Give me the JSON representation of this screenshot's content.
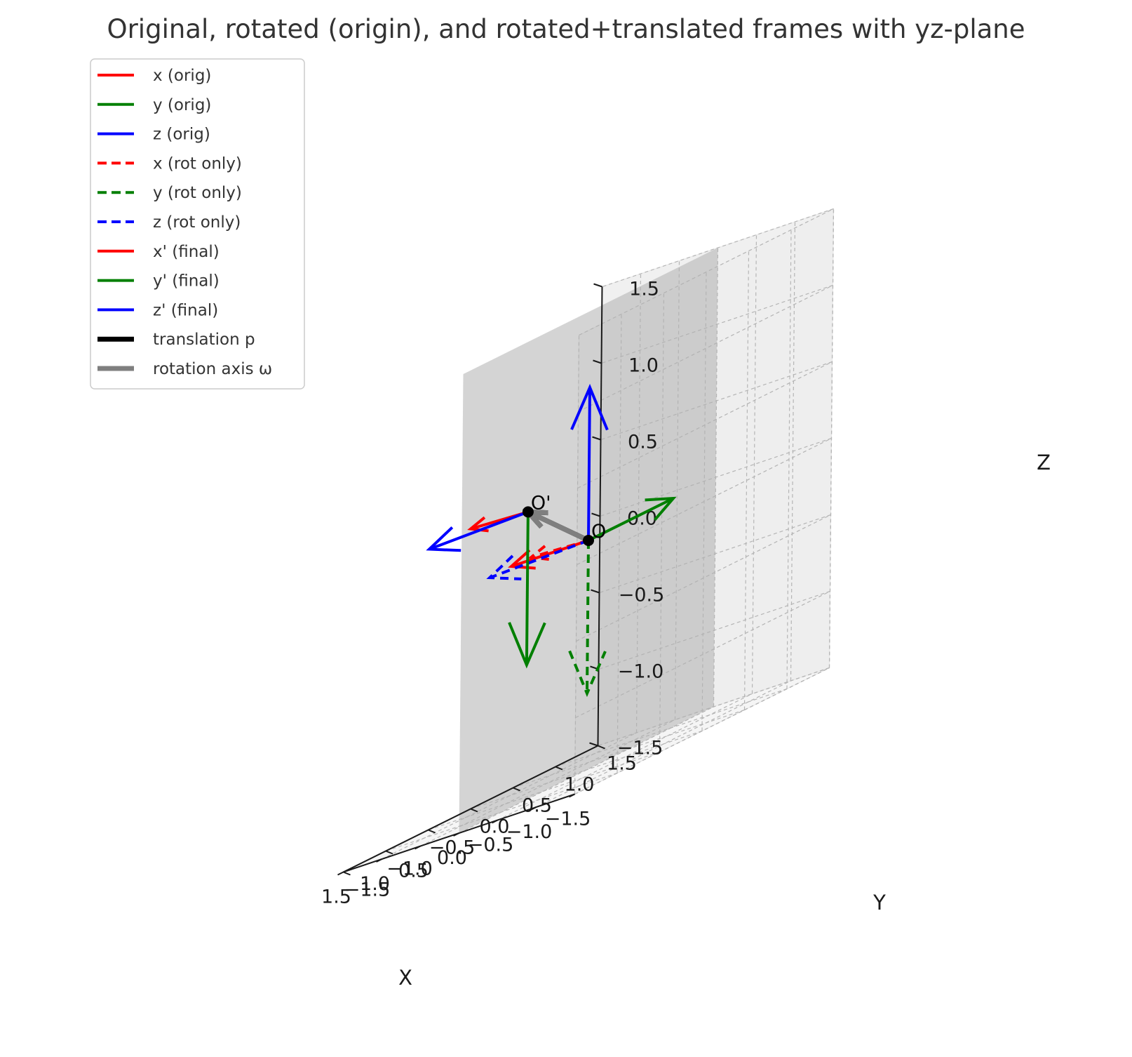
{
  "chart_data": {
    "type": "3d-quiver",
    "title": "Original, rotated (origin), and rotated+translated frames with yz-plane",
    "xlabel": "X",
    "ylabel": "Y",
    "zlabel": "Z",
    "xlim": [
      -1.5,
      1.5
    ],
    "ylim": [
      -1.5,
      1.5
    ],
    "zlim": [
      -1.5,
      1.5
    ],
    "x_ticks": [
      "−1.5",
      "−1.0",
      "−0.5",
      "0.0",
      "0.5",
      "1.0",
      "1.5"
    ],
    "y_ticks": [
      "−1.5",
      "−1.0",
      "−0.5",
      "0.0",
      "0.5",
      "1.0",
      "1.5"
    ],
    "z_ticks": [
      "−1.5",
      "−1.0",
      "−0.5",
      "0.0",
      "0.5",
      "1.0",
      "1.5"
    ],
    "tick_values": [
      -1.5,
      -1.0,
      -0.5,
      0.0,
      0.5,
      1.0,
      1.5
    ],
    "grid": true,
    "legend_position": "upper-left",
    "plane": {
      "x": 0,
      "y_range": [
        -1.5,
        1.5
      ],
      "z_range": [
        -1.5,
        1.5
      ],
      "color": "#b0b0b0"
    },
    "points": [
      {
        "label": "O",
        "pos": [
          0,
          0,
          0
        ]
      },
      {
        "label": "O'",
        "pos": [
          -0.2,
          -0.9,
          0.4
        ]
      }
    ],
    "series": [
      {
        "name": "x (orig)",
        "color": "#ff0000",
        "style": "solid",
        "start": [
          0,
          0,
          0
        ],
        "vec": [
          1,
          0,
          0
        ]
      },
      {
        "name": "y (orig)",
        "color": "#007f00",
        "style": "solid",
        "start": [
          0,
          0,
          0
        ],
        "vec": [
          0,
          1,
          0
        ]
      },
      {
        "name": "z (orig)",
        "color": "#0000ff",
        "style": "solid",
        "start": [
          0,
          0,
          0
        ],
        "vec": [
          0,
          0,
          1
        ]
      },
      {
        "name": "x (rot only)",
        "color": "#ff0000",
        "style": "dashed",
        "start": [
          0,
          0,
          0
        ],
        "vec": [
          -0.3,
          -0.95,
          0.1
        ]
      },
      {
        "name": "y (rot only)",
        "color": "#007f00",
        "style": "dashed",
        "start": [
          0,
          0,
          0
        ],
        "vec": [
          0,
          0,
          -1
        ]
      },
      {
        "name": "z (rot only)",
        "color": "#0000ff",
        "style": "dashed",
        "start": [
          0,
          0,
          0
        ],
        "vec": [
          0.95,
          -0.3,
          0
        ]
      },
      {
        "name": "x' (final)",
        "color": "#ff0000",
        "style": "solid",
        "start": [
          -0.2,
          -0.9,
          0.4
        ],
        "vec": [
          -0.3,
          -0.95,
          0.1
        ]
      },
      {
        "name": "y' (final)",
        "color": "#007f00",
        "style": "solid",
        "start": [
          -0.2,
          -0.9,
          0.4
        ],
        "vec": [
          0,
          0,
          -1
        ]
      },
      {
        "name": "z' (final)",
        "color": "#0000ff",
        "style": "solid",
        "start": [
          -0.2,
          -0.9,
          0.4
        ],
        "vec": [
          0.95,
          -0.3,
          0
        ]
      },
      {
        "name": "translation p",
        "color": "#000000",
        "style": "thick",
        "start": [
          0,
          0,
          0
        ],
        "vec": [
          -0.2,
          -0.9,
          0.4
        ]
      },
      {
        "name": "rotation axis ω",
        "color": "#7f7f7f",
        "style": "thick",
        "start": [
          0,
          0,
          0
        ],
        "vec": [
          -0.2,
          -0.9,
          0.4
        ]
      }
    ]
  }
}
